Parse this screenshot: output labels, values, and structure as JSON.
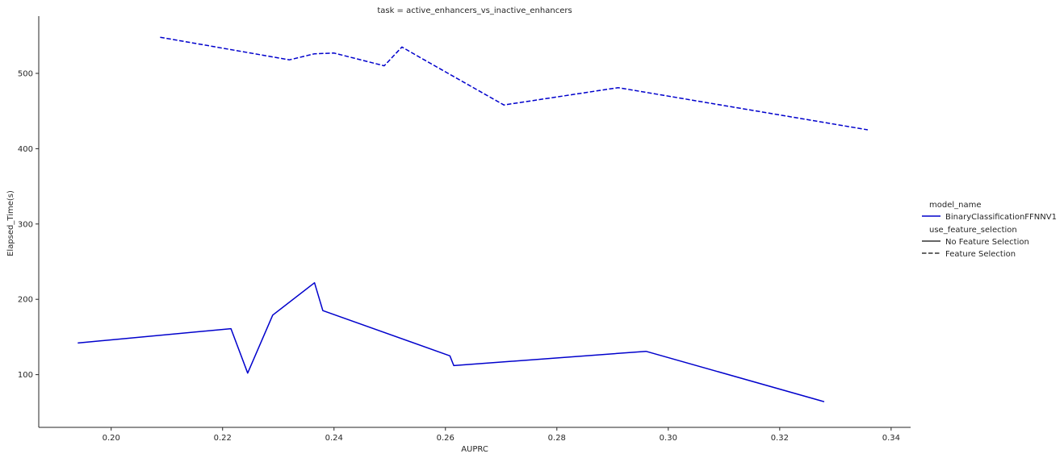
{
  "chart_data": {
    "type": "line",
    "title": "task = active_enhancers_vs_inactive_enhancers",
    "xlabel": "AUPRC",
    "ylabel": "Elapsed_Time(s)",
    "xlim": [
      0.187,
      0.3435
    ],
    "ylim": [
      30,
      576
    ],
    "x_ticks": [
      0.2,
      0.22,
      0.24,
      0.26,
      0.28,
      0.3,
      0.32,
      0.34
    ],
    "x_tick_labels": [
      "0.20",
      "0.22",
      "0.24",
      "0.26",
      "0.28",
      "0.30",
      "0.32",
      "0.34"
    ],
    "y_ticks": [
      100,
      200,
      300,
      400,
      500
    ],
    "y_tick_labels": [
      "100",
      "200",
      "300",
      "400",
      "500"
    ],
    "grid": false,
    "legend": {
      "placement": "right",
      "title_hue": "model_name",
      "hue_entries": [
        {
          "label": "BinaryClassificationFFNNV1",
          "color": "#0000cc"
        }
      ],
      "title_style": "use_feature_selection",
      "style_entries": [
        {
          "label": "No Feature Selection",
          "dash": "solid"
        },
        {
          "label": "Feature Selection",
          "dash": "dashed"
        }
      ]
    },
    "series": [
      {
        "name": "No Feature Selection",
        "color": "#0000cc",
        "dash": "solid",
        "x": [
          0.194,
          0.2215,
          0.2245,
          0.229,
          0.2365,
          0.238,
          0.2608,
          0.2615,
          0.296,
          0.328
        ],
        "y": [
          142,
          161,
          102,
          179,
          222,
          185,
          125,
          112,
          131,
          64
        ]
      },
      {
        "name": "Feature Selection",
        "color": "#0000cc",
        "dash": "dashed",
        "x": [
          0.2088,
          0.232,
          0.2365,
          0.24,
          0.249,
          0.2522,
          0.2562,
          0.2705,
          0.291,
          0.3358
        ],
        "y": [
          548,
          518,
          526,
          527,
          510,
          535,
          518,
          458,
          481,
          425
        ]
      }
    ]
  }
}
